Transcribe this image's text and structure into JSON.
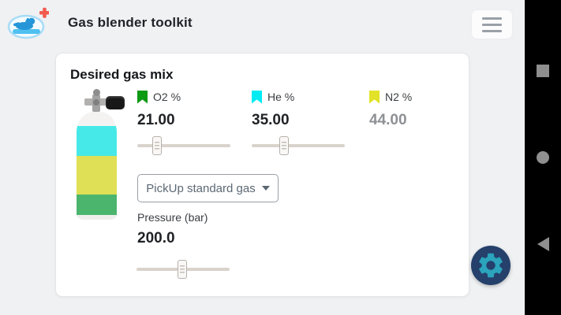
{
  "header": {
    "title": "Gas blender toolkit",
    "app_icon": "diver-logo-with-plus",
    "menu_icon": "hamburger-menu"
  },
  "card": {
    "title": "Desired gas mix",
    "gases": [
      {
        "label": "O2 %",
        "value": "21.00",
        "swatch_color": "#0d9a14",
        "slider_percent": 21,
        "editable": true
      },
      {
        "label": "He %",
        "value": "35.00",
        "swatch_color": "#00ecf2",
        "slider_percent": 35,
        "editable": true
      },
      {
        "label": "N2 %",
        "value": "44.00",
        "swatch_color": "#e2e228",
        "editable": false
      }
    ],
    "dropdown": {
      "label": "PickUp standard gas",
      "icon": "caret-down"
    },
    "pressure": {
      "label": "Pressure (bar)",
      "value": "200.0",
      "slider_percent": 49
    },
    "cylinder_fill": {
      "he_color": "#46e9e7",
      "n2_color": "#dfe055",
      "o2_color": "#4cb56d"
    }
  },
  "fab": {
    "icon": "settings-gear",
    "bg_color": "#25406b",
    "icon_color": "#2ba4bc"
  },
  "android_nav": {
    "buttons": [
      "recents-square",
      "home-circle",
      "back-triangle"
    ]
  }
}
